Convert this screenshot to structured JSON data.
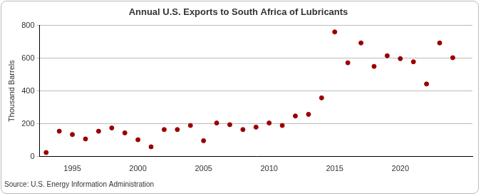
{
  "chart_data": {
    "type": "scatter",
    "title": "Annual U.S. Exports to South Africa of Lubricants",
    "y_label": "Thousand Barrels",
    "source": "Source: U.S. Energy Information Administration",
    "x": [
      1993,
      1994,
      1995,
      1996,
      1997,
      1998,
      1999,
      2000,
      2001,
      2002,
      2003,
      2004,
      2005,
      2006,
      2007,
      2008,
      2009,
      2010,
      2011,
      2012,
      2013,
      2014,
      2015,
      2016,
      2017,
      2018,
      2019,
      2020,
      2021,
      2022,
      2023,
      2024
    ],
    "values": [
      25,
      155,
      135,
      108,
      155,
      175,
      145,
      103,
      60,
      165,
      165,
      190,
      97,
      205,
      195,
      165,
      180,
      205,
      190,
      248,
      258,
      358,
      760,
      572,
      693,
      550,
      615,
      597,
      578,
      443,
      693,
      603
    ],
    "color": "#990000",
    "marker": "circle",
    "xlim": [
      1992.5,
      2025.5
    ],
    "xticks": [
      1995,
      2000,
      2005,
      2010,
      2015,
      2020
    ],
    "ylim": [
      0,
      800
    ],
    "yticks": [
      0,
      200,
      400,
      600,
      800
    ],
    "grid": true
  }
}
